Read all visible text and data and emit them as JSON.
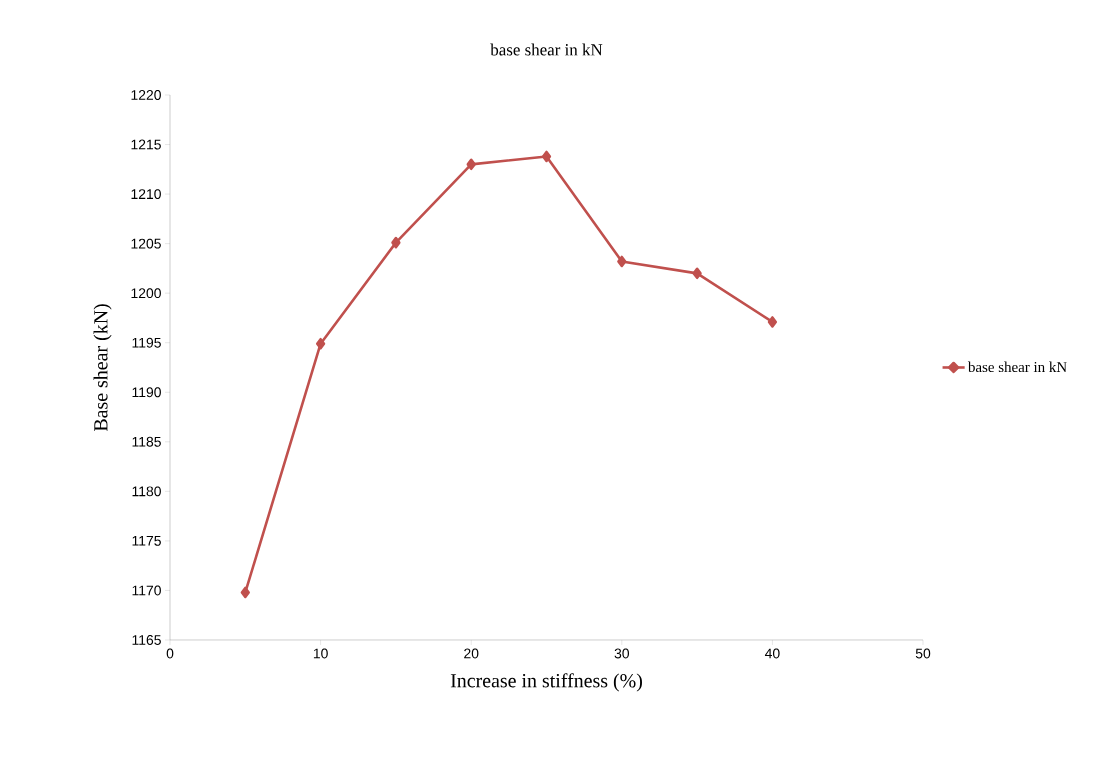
{
  "chart_data": {
    "type": "line",
    "title": "base shear in kN",
    "xlabel": "Increase in stiffness (%)",
    "ylabel": "Base shear (kN)",
    "x": [
      5,
      10,
      15,
      20,
      25,
      30,
      35,
      40
    ],
    "series": [
      {
        "name": "base shear in kN",
        "color": "#c0504d",
        "values": [
          1169.8,
          1194.9,
          1205.1,
          1213.0,
          1213.8,
          1203.2,
          1202.0,
          1197.1
        ]
      }
    ],
    "xlim": [
      0,
      50
    ],
    "xticks": [
      0,
      10,
      20,
      30,
      40,
      50
    ],
    "ylim": [
      1165,
      1220
    ],
    "yticks": [
      1165,
      1170,
      1175,
      1180,
      1185,
      1190,
      1195,
      1200,
      1205,
      1210,
      1215,
      1220
    ],
    "grid": false,
    "legend": "right",
    "marker": "diamond",
    "line_style": "solid"
  }
}
